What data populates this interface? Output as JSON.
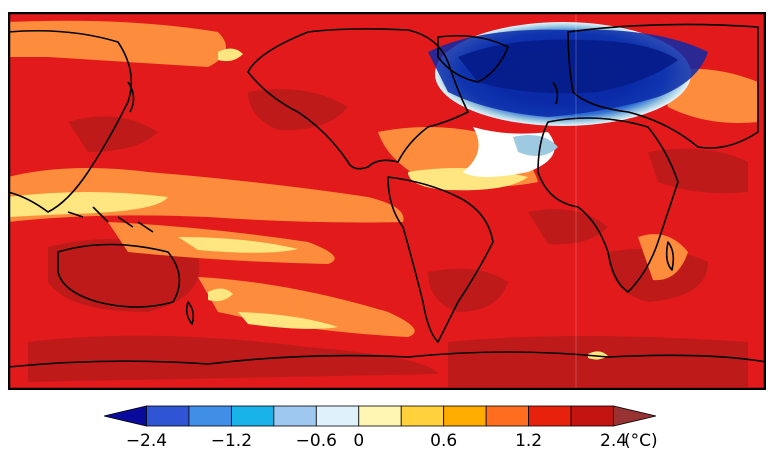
{
  "map": {
    "type": "filled-contour-world-map",
    "projection": "equirectangular",
    "colors": {
      "background_warm": "#e31a1c",
      "dark_red": "#bd1a1a",
      "warm_orange": "#fd8d3c",
      "pale_yellow": "#ffe680",
      "cold_core": "#0a2aa8",
      "cold_edge": "#9ecae1",
      "coastline": "#000000",
      "frame": "#000000"
    }
  },
  "colorbar": {
    "ticks": [
      "−2.4",
      "−1.2",
      "−0.6",
      "0",
      "0.6",
      "1.2",
      "2.4"
    ],
    "unit": "(°C)",
    "colors": [
      "#0a0a9c",
      "#2f55d4",
      "#3f8fe8",
      "#19b3ea",
      "#9ec8f0",
      "#dff2fb",
      "#fff6b3",
      "#ffd13c",
      "#ffab00",
      "#ff6d1f",
      "#e8210d",
      "#c41410",
      "#993333"
    ]
  }
}
